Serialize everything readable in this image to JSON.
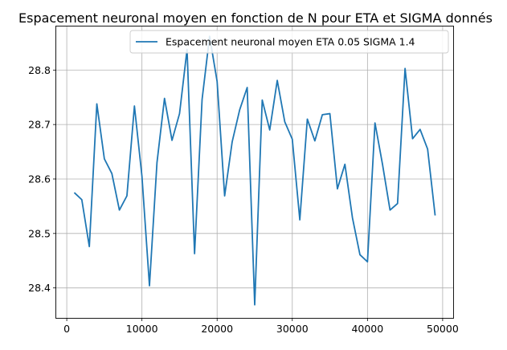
{
  "chart_data": {
    "type": "line",
    "title": "Espacement neuronal moyen en fonction de N pour ETA et SIGMA donnés",
    "xlabel": "",
    "ylabel": "",
    "xlim": [
      -1400,
      51400
    ],
    "ylim": [
      28.345,
      28.88
    ],
    "xticks": [
      0,
      10000,
      20000,
      30000,
      40000,
      50000
    ],
    "yticks": [
      28.4,
      28.5,
      28.6,
      28.7,
      28.8
    ],
    "grid": true,
    "legend_position": "top-right",
    "series": [
      {
        "name": "Espacement neuronal moyen ETA 0.05 SIGMA 1.4",
        "color": "#1f77b4",
        "x": [
          1000,
          2000,
          3000,
          4000,
          5000,
          6000,
          7000,
          8000,
          9000,
          10000,
          11000,
          12000,
          13000,
          14000,
          15000,
          16000,
          17000,
          18000,
          19000,
          20000,
          21000,
          22000,
          23000,
          24000,
          25000,
          26000,
          27000,
          28000,
          29000,
          30000,
          31000,
          32000,
          33000,
          34000,
          35000,
          36000,
          37000,
          38000,
          39000,
          40000,
          41000,
          42000,
          43000,
          44000,
          45000,
          46000,
          47000,
          48000,
          49000
        ],
        "y": [
          28.575,
          28.562,
          28.476,
          28.738,
          28.637,
          28.61,
          28.543,
          28.569,
          28.734,
          28.605,
          28.404,
          28.63,
          28.748,
          28.671,
          28.72,
          28.838,
          28.463,
          28.746,
          28.862,
          28.779,
          28.569,
          28.668,
          28.727,
          28.768,
          28.369,
          28.745,
          28.69,
          28.781,
          28.705,
          28.673,
          28.525,
          28.71,
          28.67,
          28.718,
          28.72,
          28.582,
          28.627,
          28.529,
          28.461,
          28.448,
          28.703,
          28.627,
          28.543,
          28.555,
          28.803,
          28.674,
          28.691,
          28.655,
          28.533
        ]
      }
    ]
  }
}
